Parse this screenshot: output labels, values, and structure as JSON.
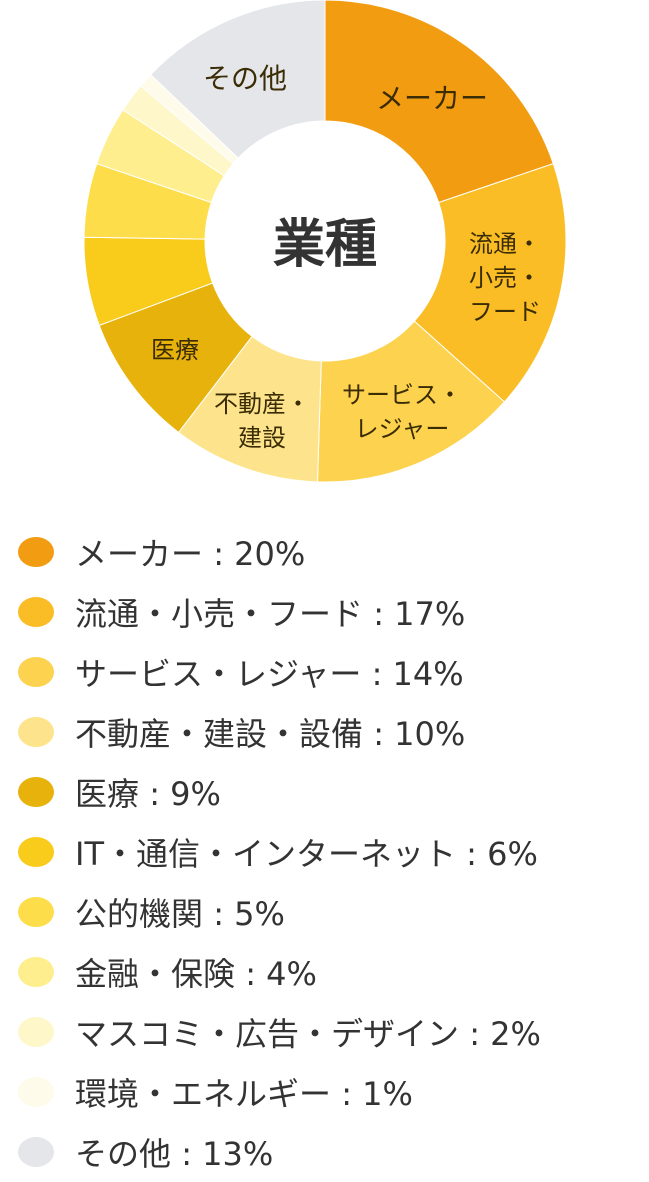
{
  "chart_data": {
    "type": "pie",
    "donut": true,
    "center_label": "業種",
    "categories": [
      "メーカー",
      "流通・小売・フード",
      "サービス・レジャー",
      "不動産・建設・設備",
      "医療",
      "IT・通信・インターネット",
      "公的機関",
      "金融・保険",
      "マスコミ・広告・デザイン",
      "環境・エネルギー",
      "その他"
    ],
    "values": [
      20,
      17,
      14,
      10,
      9,
      6,
      5,
      4,
      2,
      1,
      13
    ],
    "unit": "%",
    "colors": [
      "#F29C12",
      "#FBBD25",
      "#FCD24E",
      "#FDE48C",
      "#E8B20C",
      "#F9CB1A",
      "#FDDD49",
      "#FEEE8E",
      "#FEF7CA",
      "#FEFBEA",
      "#E5E6E9"
    ],
    "slice_labels": [
      {
        "index": 0,
        "lines": [
          "メーカー"
        ]
      },
      {
        "index": 1,
        "lines": [
          "流通・",
          "小売・",
          "フード"
        ]
      },
      {
        "index": 2,
        "lines": [
          "サービス・",
          "レジャー"
        ]
      },
      {
        "index": 3,
        "lines": [
          "不動産・",
          "建設"
        ]
      },
      {
        "index": 4,
        "lines": [
          "医療"
        ]
      },
      {
        "index": 10,
        "lines": [
          "その他"
        ]
      }
    ],
    "legend_placement": "bottom"
  }
}
